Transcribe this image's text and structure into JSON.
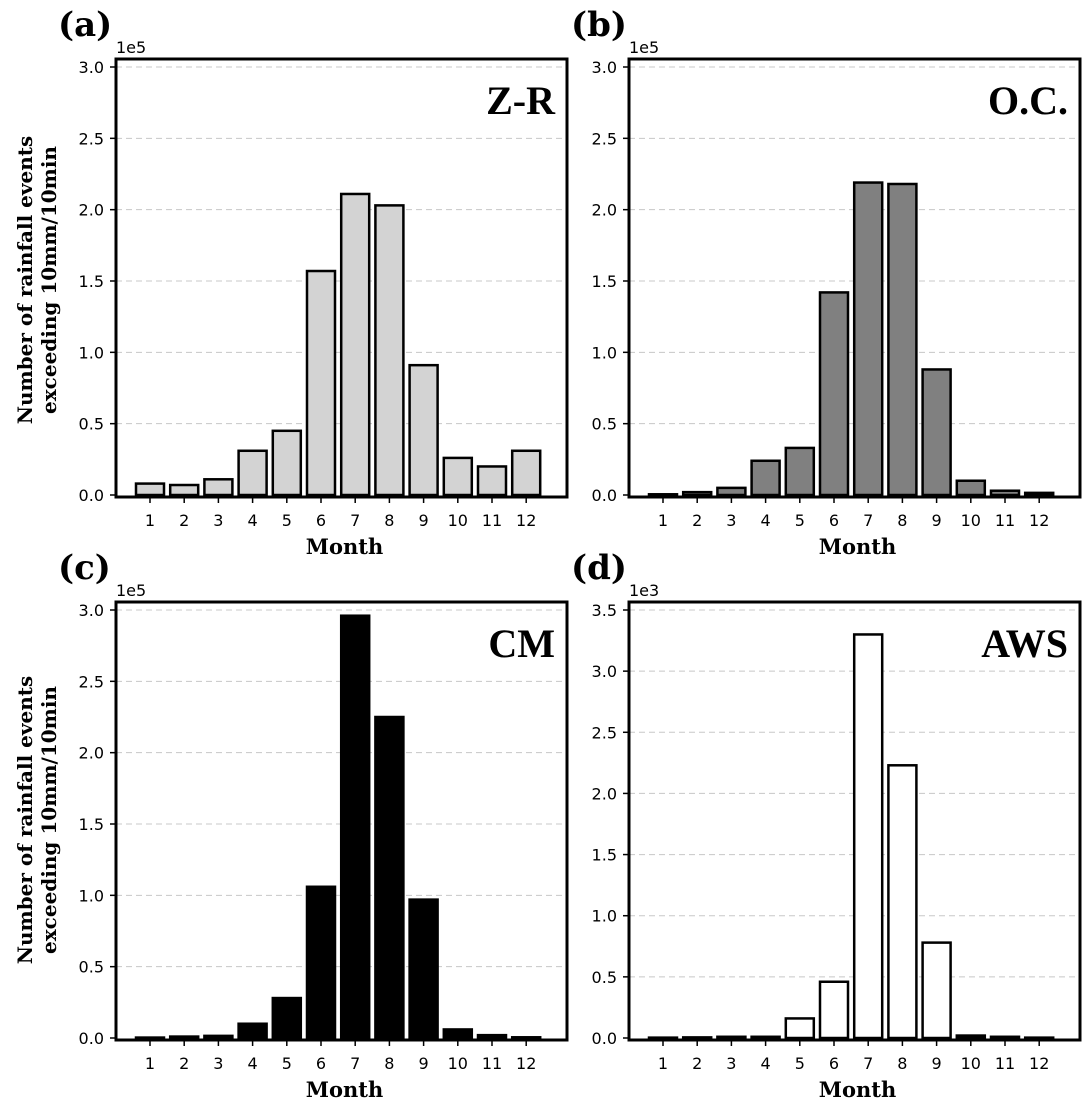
{
  "figure": {
    "ylabel_line1": "Number of rainfall events",
    "ylabel_line2": "exceeding 10mm/10min"
  },
  "chart_data": [
    {
      "type": "bar",
      "panel_label": "(a)",
      "method_label": "Z-R",
      "multiplier": "1e5",
      "categories": [
        "1",
        "2",
        "3",
        "4",
        "5",
        "6",
        "7",
        "8",
        "9",
        "10",
        "11",
        "12"
      ],
      "values": [
        0.08,
        0.07,
        0.11,
        0.31,
        0.45,
        1.57,
        2.11,
        2.03,
        0.91,
        0.26,
        0.2,
        0.31
      ],
      "xlabel": "Month",
      "ylabel": "Number of rainfall events exceeding 10mm/10min",
      "ylim": [
        0,
        3.0
      ],
      "yticks": [
        "0.0",
        "0.5",
        "1.0",
        "1.5",
        "2.0",
        "2.5",
        "3.0"
      ],
      "bar_color": "#d3d3d3",
      "grid": true
    },
    {
      "type": "bar",
      "panel_label": "(b)",
      "method_label": "O.C.",
      "multiplier": "1e5",
      "categories": [
        "1",
        "2",
        "3",
        "4",
        "5",
        "6",
        "7",
        "8",
        "9",
        "10",
        "11",
        "12"
      ],
      "values": [
        0.005,
        0.02,
        0.05,
        0.24,
        0.33,
        1.42,
        2.19,
        2.18,
        0.88,
        0.1,
        0.03,
        0.015
      ],
      "xlabel": "Month",
      "ylabel": "",
      "ylim": [
        0,
        3.0
      ],
      "yticks": [
        "0.0",
        "0.5",
        "1.0",
        "1.5",
        "2.0",
        "2.5",
        "3.0"
      ],
      "bar_color": "#808080",
      "grid": true
    },
    {
      "type": "bar",
      "panel_label": "(c)",
      "method_label": "CM",
      "multiplier": "1e5",
      "categories": [
        "1",
        "2",
        "3",
        "4",
        "5",
        "6",
        "7",
        "8",
        "9",
        "10",
        "11",
        "12"
      ],
      "values": [
        0.003,
        0.01,
        0.015,
        0.1,
        0.28,
        1.06,
        2.96,
        2.25,
        0.97,
        0.06,
        0.02,
        0.005
      ],
      "xlabel": "Month",
      "ylabel": "Number of rainfall events exceeding 10mm/10min",
      "ylim": [
        0,
        3.0
      ],
      "yticks": [
        "0.0",
        "0.5",
        "1.0",
        "1.5",
        "2.0",
        "2.5",
        "3.0"
      ],
      "bar_color": "#000000",
      "grid": true
    },
    {
      "type": "bar",
      "panel_label": "(d)",
      "method_label": "AWS",
      "multiplier": "1e3",
      "categories": [
        "1",
        "2",
        "3",
        "4",
        "5",
        "6",
        "7",
        "8",
        "9",
        "10",
        "11",
        "12"
      ],
      "values": [
        0.003,
        0.005,
        0.01,
        0.01,
        0.16,
        0.46,
        3.3,
        2.23,
        0.78,
        0.02,
        0.01,
        0.003
      ],
      "xlabel": "Month",
      "ylabel": "",
      "ylim": [
        0,
        3.5
      ],
      "yticks": [
        "0.0",
        "0.5",
        "1.0",
        "1.5",
        "2.0",
        "2.5",
        "3.0",
        "3.5"
      ],
      "bar_color": "#ffffff",
      "grid": true
    }
  ]
}
